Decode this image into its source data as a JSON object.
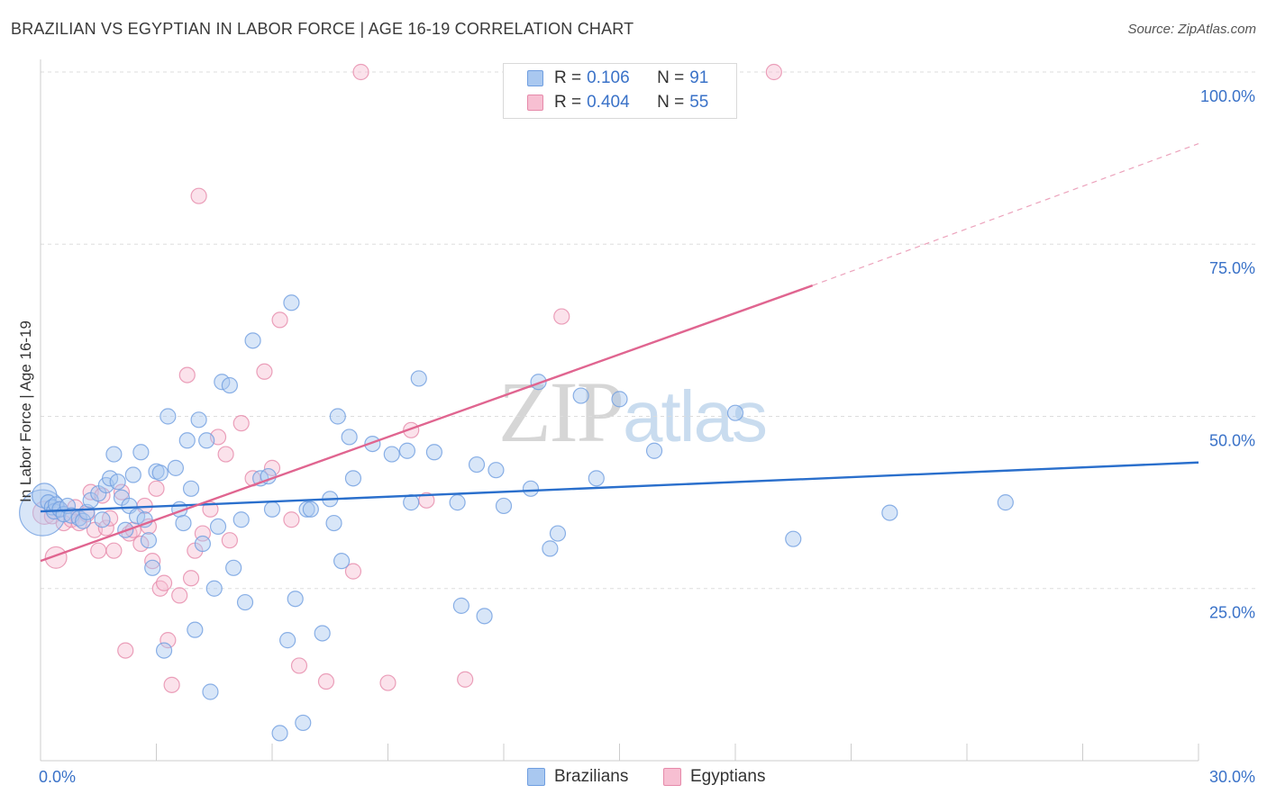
{
  "title": "BRAZILIAN VS EGYPTIAN IN LABOR FORCE | AGE 16-19 CORRELATION CHART",
  "source": "Source: ZipAtlas.com",
  "watermark": {
    "zip": "ZIP",
    "atlas": "atlas"
  },
  "legend": {
    "series1": {
      "r_label": "R =",
      "r_value": "0.106",
      "n_label": "N =",
      "n_value": "91"
    },
    "series2": {
      "r_label": "R =",
      "r_value": "0.404",
      "n_label": "N =",
      "n_value": "55"
    }
  },
  "bottom_legend": {
    "brazilians": "Brazilians",
    "egyptians": "Egyptians"
  },
  "colors": {
    "blue_fill": "#a9c8f0",
    "blue_stroke": "#6f9ee0",
    "blue_line": "#2a6fcc",
    "pink_fill": "#f7bfd2",
    "pink_stroke": "#e68aaa",
    "pink_line": "#e06590",
    "axis_text_blue": "#3a72c8",
    "grid": "#dddddd"
  },
  "chart_data": {
    "type": "scatter",
    "title": "BRAZILIAN VS EGYPTIAN IN LABOR FORCE | AGE 16-19 CORRELATION CHART",
    "xlabel": "",
    "ylabel": "In Labor Force | Age 16-19",
    "xlim": [
      0,
      30
    ],
    "ylim": [
      0,
      102
    ],
    "x_tick_labels": [
      "0.0%",
      "30.0%"
    ],
    "y_ticks": [
      {
        "value": 100,
        "label": "100.0%"
      },
      {
        "value": 75,
        "label": "75.0%"
      },
      {
        "value": 50,
        "label": "50.0%"
      },
      {
        "value": 25,
        "label": "25.0%"
      }
    ],
    "series": [
      {
        "name": "Brazilians",
        "r": 0.106,
        "n": 91,
        "trend": {
          "x": [
            0,
            30
          ],
          "y": [
            36.2,
            43.3
          ],
          "dashed_extension": false
        },
        "points": [
          [
            0.05,
            36.0,
            3
          ],
          [
            0.1,
            38.5,
            1.6
          ],
          [
            0.2,
            37.5,
            1
          ],
          [
            0.3,
            36.8,
            1
          ],
          [
            0.35,
            36.2,
            1
          ],
          [
            0.4,
            37.2,
            1
          ],
          [
            0.5,
            36.5,
            1
          ],
          [
            0.6,
            35.8,
            1
          ],
          [
            0.7,
            37.0,
            1
          ],
          [
            0.8,
            35.6,
            1
          ],
          [
            1.0,
            35.2,
            1
          ],
          [
            1.1,
            34.8,
            1
          ],
          [
            1.2,
            36.1,
            1
          ],
          [
            1.3,
            37.8,
            1
          ],
          [
            1.5,
            38.8,
            1
          ],
          [
            1.6,
            35.0,
            1
          ],
          [
            1.7,
            40.0,
            1
          ],
          [
            1.8,
            41.0,
            1
          ],
          [
            1.9,
            44.5,
            1
          ],
          [
            2.0,
            40.5,
            1
          ],
          [
            2.1,
            38.2,
            1
          ],
          [
            2.2,
            33.5,
            1
          ],
          [
            2.3,
            37.0,
            1
          ],
          [
            2.4,
            41.5,
            1
          ],
          [
            2.5,
            35.5,
            1
          ],
          [
            2.6,
            44.8,
            1
          ],
          [
            2.7,
            35.0,
            1
          ],
          [
            2.8,
            32.0,
            1
          ],
          [
            2.9,
            28.0,
            1
          ],
          [
            3.0,
            42.0,
            1
          ],
          [
            3.1,
            41.8,
            1
          ],
          [
            3.2,
            16.0,
            1
          ],
          [
            3.3,
            50.0,
            1
          ],
          [
            3.5,
            42.5,
            1
          ],
          [
            3.6,
            36.5,
            1
          ],
          [
            3.7,
            34.5,
            1
          ],
          [
            3.8,
            46.5,
            1
          ],
          [
            3.9,
            39.5,
            1
          ],
          [
            4.0,
            19.0,
            1
          ],
          [
            4.1,
            49.5,
            1
          ],
          [
            4.2,
            31.5,
            1
          ],
          [
            4.3,
            46.5,
            1
          ],
          [
            4.4,
            10.0,
            1
          ],
          [
            4.5,
            25.0,
            1
          ],
          [
            4.6,
            34.0,
            1
          ],
          [
            4.7,
            55.0,
            1
          ],
          [
            4.9,
            54.5,
            1
          ],
          [
            5.0,
            28.0,
            1
          ],
          [
            5.2,
            35.0,
            1
          ],
          [
            5.3,
            23.0,
            1
          ],
          [
            5.5,
            61.0,
            1
          ],
          [
            5.7,
            41.0,
            1
          ],
          [
            5.9,
            41.3,
            1
          ],
          [
            6.0,
            36.5,
            1
          ],
          [
            6.2,
            4.0,
            1
          ],
          [
            6.4,
            17.5,
            1
          ],
          [
            6.5,
            66.5,
            1
          ],
          [
            6.6,
            23.5,
            1
          ],
          [
            6.8,
            5.5,
            1
          ],
          [
            6.9,
            36.5,
            1
          ],
          [
            7.0,
            36.5,
            1
          ],
          [
            7.3,
            18.5,
            1
          ],
          [
            7.5,
            38.0,
            1
          ],
          [
            7.6,
            34.5,
            1
          ],
          [
            7.7,
            50.0,
            1
          ],
          [
            7.8,
            29.0,
            1
          ],
          [
            8.0,
            47.0,
            1
          ],
          [
            8.1,
            41.0,
            1
          ],
          [
            8.6,
            46.0,
            1
          ],
          [
            9.1,
            44.5,
            1
          ],
          [
            9.5,
            45.0,
            1
          ],
          [
            9.6,
            37.5,
            1
          ],
          [
            9.8,
            55.5,
            1
          ],
          [
            10.2,
            44.8,
            1
          ],
          [
            10.8,
            37.5,
            1
          ],
          [
            10.9,
            22.5,
            1
          ],
          [
            11.3,
            43.0,
            1
          ],
          [
            11.5,
            21.0,
            1
          ],
          [
            11.8,
            42.2,
            1
          ],
          [
            12.0,
            37.0,
            1
          ],
          [
            12.7,
            39.5,
            1
          ],
          [
            12.9,
            55.0,
            1
          ],
          [
            13.2,
            30.8,
            1
          ],
          [
            13.4,
            33.0,
            1
          ],
          [
            14.0,
            53.0,
            1
          ],
          [
            14.4,
            41.0,
            1
          ],
          [
            15.0,
            52.5,
            1
          ],
          [
            15.9,
            45.0,
            1
          ],
          [
            18.0,
            50.5,
            1
          ],
          [
            19.5,
            32.2,
            1
          ],
          [
            22.0,
            36.0,
            1
          ],
          [
            25.0,
            37.5,
            1
          ]
        ]
      },
      {
        "name": "Egyptians",
        "r": 0.404,
        "n": 55,
        "trend": {
          "x": [
            0,
            20
          ],
          "y": [
            29.0,
            69.0
          ],
          "dashed_to": {
            "x": 30,
            "y": 89.6
          }
        },
        "points": [
          [
            0.1,
            36.0,
            1.5
          ],
          [
            0.3,
            35.5,
            1
          ],
          [
            0.4,
            29.5,
            1.4
          ],
          [
            0.5,
            36.5,
            1
          ],
          [
            0.6,
            34.5,
            1
          ],
          [
            0.8,
            35.0,
            1
          ],
          [
            0.9,
            36.8,
            1
          ],
          [
            1.0,
            34.5,
            1
          ],
          [
            1.2,
            35.8,
            1
          ],
          [
            1.3,
            39.0,
            1
          ],
          [
            1.4,
            33.5,
            1
          ],
          [
            1.5,
            30.5,
            1
          ],
          [
            1.6,
            38.5,
            1
          ],
          [
            1.7,
            33.8,
            1
          ],
          [
            1.8,
            35.2,
            1
          ],
          [
            1.9,
            30.5,
            1
          ],
          [
            2.1,
            39.0,
            1
          ],
          [
            2.2,
            16.0,
            1
          ],
          [
            2.3,
            33.0,
            1
          ],
          [
            2.4,
            33.5,
            1
          ],
          [
            2.6,
            31.5,
            1
          ],
          [
            2.7,
            37.0,
            1
          ],
          [
            2.8,
            34.0,
            1
          ],
          [
            2.9,
            29.0,
            1
          ],
          [
            3.0,
            39.5,
            1
          ],
          [
            3.1,
            25.0,
            1
          ],
          [
            3.2,
            25.8,
            1
          ],
          [
            3.3,
            17.5,
            1
          ],
          [
            3.4,
            11.0,
            1
          ],
          [
            3.6,
            24.0,
            1
          ],
          [
            3.8,
            56.0,
            1
          ],
          [
            3.9,
            26.5,
            1
          ],
          [
            4.0,
            30.5,
            1
          ],
          [
            4.1,
            82.0,
            1
          ],
          [
            4.2,
            33.0,
            1
          ],
          [
            4.4,
            36.5,
            1
          ],
          [
            4.6,
            47.0,
            1
          ],
          [
            4.8,
            44.5,
            1
          ],
          [
            4.9,
            32.0,
            1
          ],
          [
            5.2,
            49.0,
            1
          ],
          [
            5.5,
            41.0,
            1
          ],
          [
            5.8,
            56.5,
            1
          ],
          [
            6.0,
            42.5,
            1
          ],
          [
            6.2,
            64.0,
            1
          ],
          [
            6.5,
            35.0,
            1
          ],
          [
            6.7,
            13.8,
            1
          ],
          [
            7.4,
            11.5,
            1
          ],
          [
            8.1,
            27.5,
            1
          ],
          [
            8.3,
            100.0,
            1
          ],
          [
            9.0,
            11.3,
            1
          ],
          [
            9.6,
            48.0,
            1
          ],
          [
            10.0,
            37.8,
            1
          ],
          [
            11.0,
            11.8,
            1
          ],
          [
            13.5,
            64.5,
            1
          ],
          [
            19.0,
            100.0,
            1
          ]
        ]
      }
    ]
  }
}
